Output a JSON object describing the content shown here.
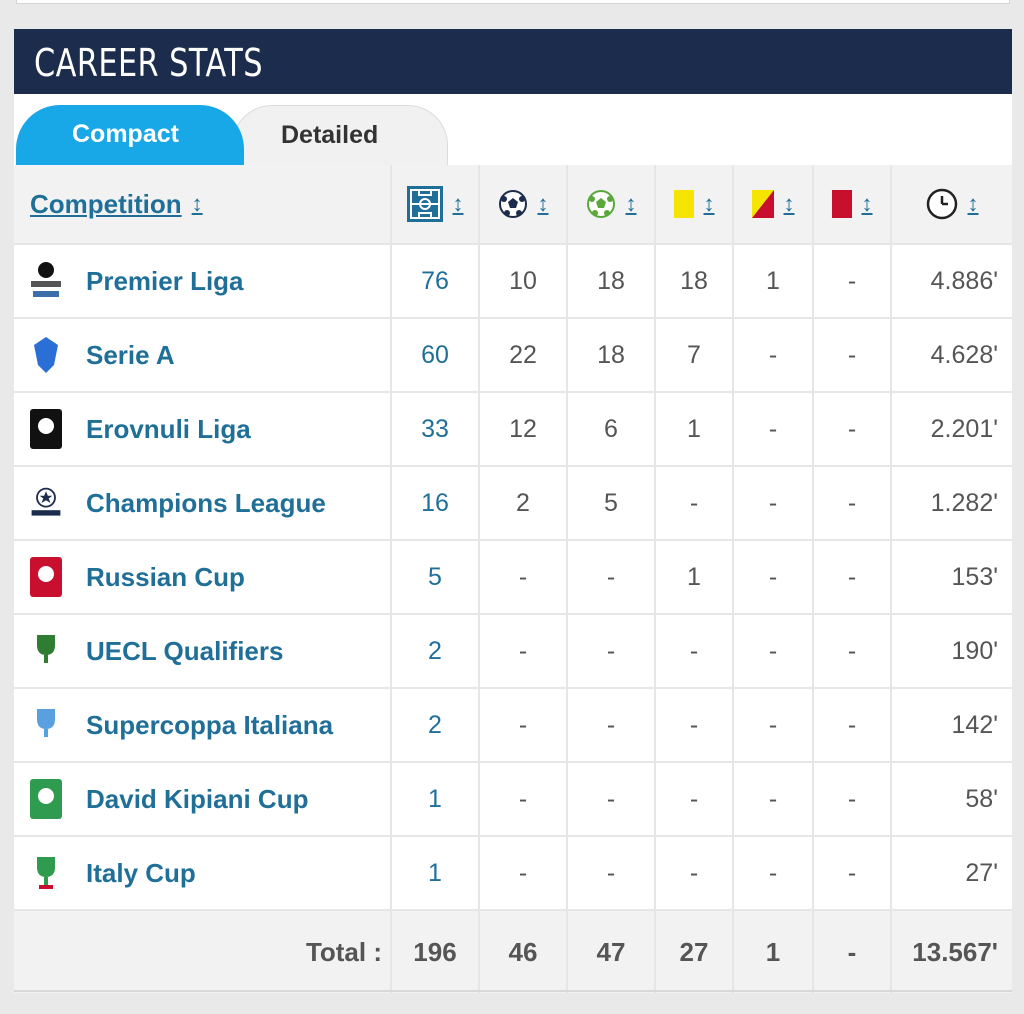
{
  "header": {
    "title": "CAREER STATS"
  },
  "tabs": [
    {
      "label": "Compact",
      "active": true
    },
    {
      "label": "Detailed",
      "active": false
    }
  ],
  "columns": {
    "competition": "Competition",
    "sort_glyph": "↕",
    "icons": [
      "pitch-icon",
      "goal-ball-icon",
      "assist-ball-icon",
      "yellow-card-icon",
      "second-yellow-card-icon",
      "red-card-icon",
      "clock-icon"
    ]
  },
  "rows": [
    {
      "competition": "Premier Liga",
      "apps": "76",
      "goals": "10",
      "assists": "18",
      "yellow": "18",
      "second_yellow": "1",
      "red": "-",
      "minutes": "4.886'"
    },
    {
      "competition": "Serie A",
      "apps": "60",
      "goals": "22",
      "assists": "18",
      "yellow": "7",
      "second_yellow": "-",
      "red": "-",
      "minutes": "4.628'"
    },
    {
      "competition": "Erovnuli Liga",
      "apps": "33",
      "goals": "12",
      "assists": "6",
      "yellow": "1",
      "second_yellow": "-",
      "red": "-",
      "minutes": "2.201'"
    },
    {
      "competition": "Champions League",
      "apps": "16",
      "goals": "2",
      "assists": "5",
      "yellow": "-",
      "second_yellow": "-",
      "red": "-",
      "minutes": "1.282'"
    },
    {
      "competition": "Russian Cup",
      "apps": "5",
      "goals": "-",
      "assists": "-",
      "yellow": "1",
      "second_yellow": "-",
      "red": "-",
      "minutes": "153'"
    },
    {
      "competition": "UECL Qualifiers",
      "apps": "2",
      "goals": "-",
      "assists": "-",
      "yellow": "-",
      "second_yellow": "-",
      "red": "-",
      "minutes": "190'"
    },
    {
      "competition": "Supercoppa Italiana",
      "apps": "2",
      "goals": "-",
      "assists": "-",
      "yellow": "-",
      "second_yellow": "-",
      "red": "-",
      "minutes": "142'"
    },
    {
      "competition": "David Kipiani Cup",
      "apps": "1",
      "goals": "-",
      "assists": "-",
      "yellow": "-",
      "second_yellow": "-",
      "red": "-",
      "minutes": "58'"
    },
    {
      "competition": "Italy Cup",
      "apps": "1",
      "goals": "-",
      "assists": "-",
      "yellow": "-",
      "second_yellow": "-",
      "red": "-",
      "minutes": "27'"
    }
  ],
  "total": {
    "label": "Total :",
    "apps": "196",
    "goals": "46",
    "assists": "47",
    "yellow": "27",
    "second_yellow": "1",
    "red": "-",
    "minutes": "13.567'"
  },
  "colors": {
    "header_bg": "#1b2c4c",
    "tab_active": "#18a8e8",
    "link": "#1f6f99",
    "yellow_card": "#f5e400",
    "red_card": "#c8102e"
  }
}
